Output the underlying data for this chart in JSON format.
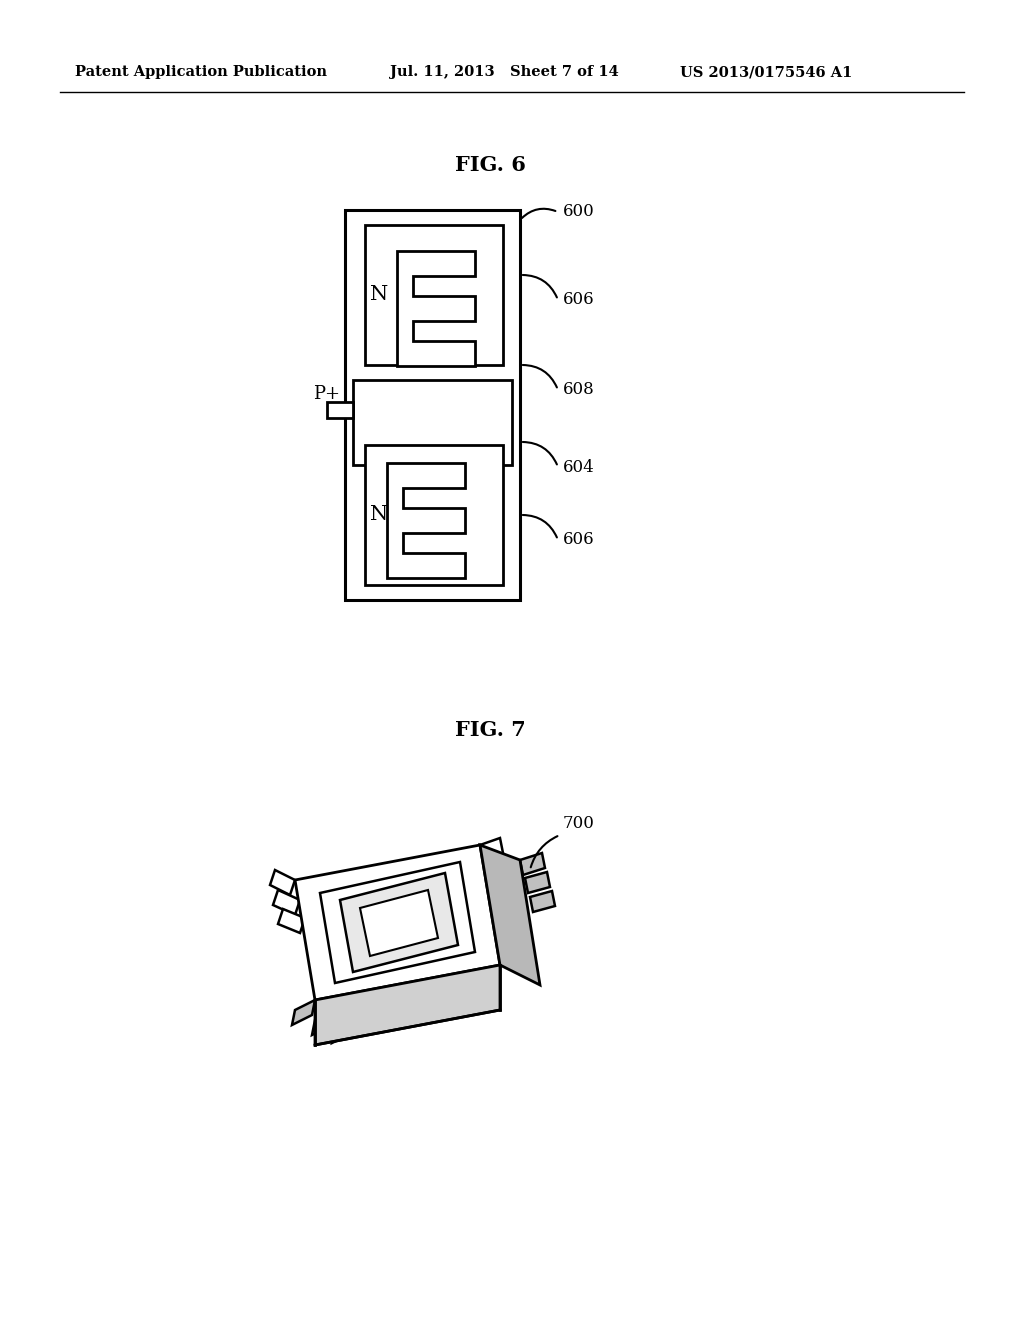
{
  "background_color": "#ffffff",
  "header_left": "Patent Application Publication",
  "header_mid": "Jul. 11, 2013   Sheet 7 of 14",
  "header_right": "US 2013/0175546 A1",
  "fig6_title": "FIG. 6",
  "fig7_title": "FIG. 7",
  "label_600": "600",
  "label_604": "604",
  "label_606a": "606",
  "label_606b": "606",
  "label_608": "608",
  "label_700": "700",
  "label_N": "N",
  "label_N2": "N",
  "label_Pplus": "P+"
}
